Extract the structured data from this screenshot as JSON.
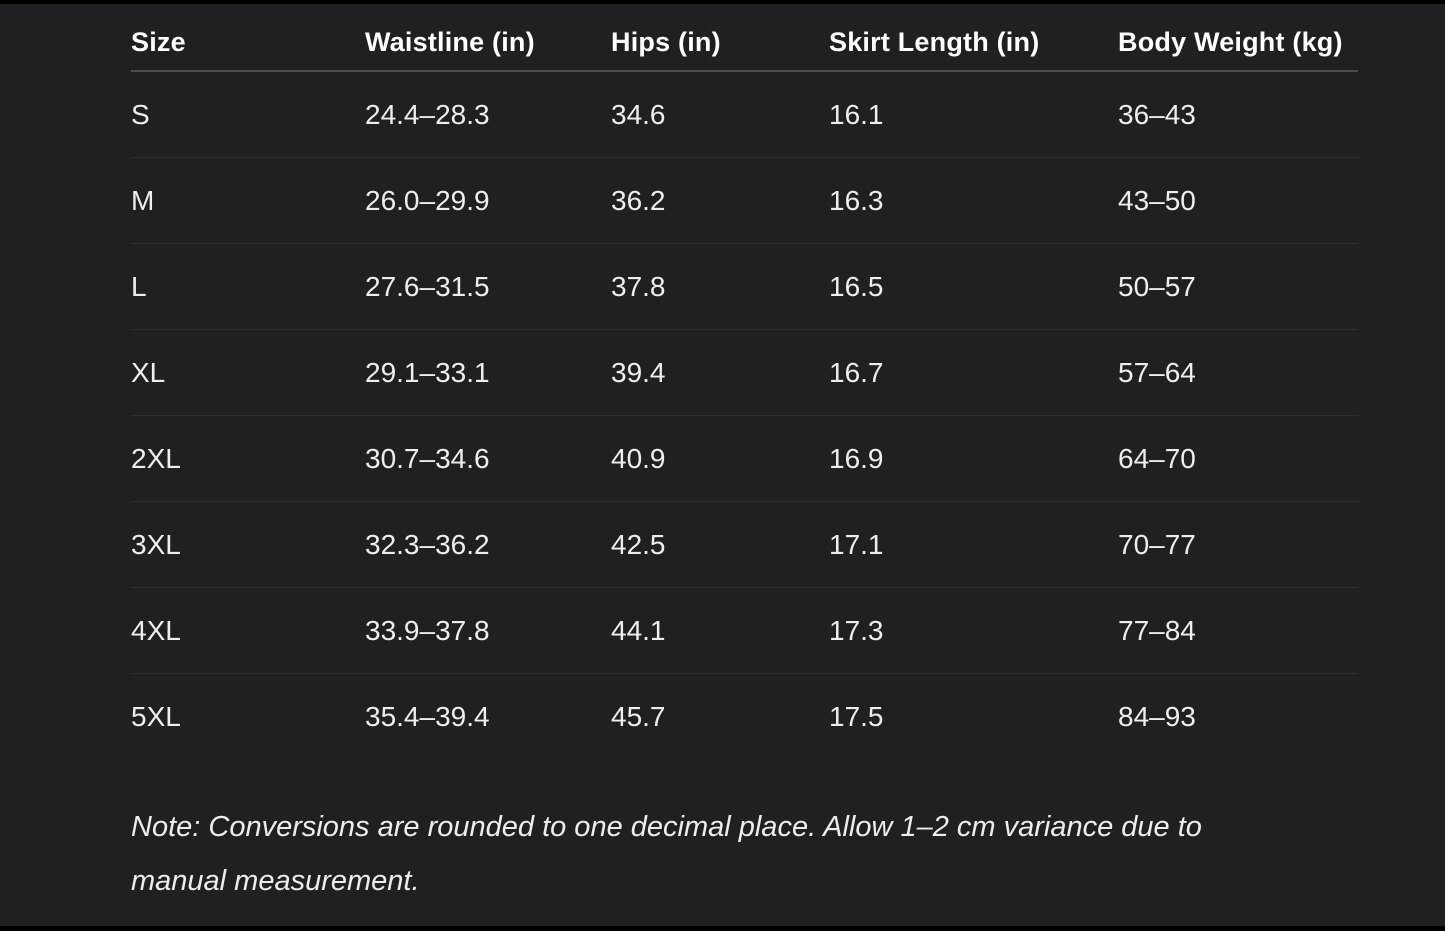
{
  "table": {
    "columns": [
      {
        "label": "Size"
      },
      {
        "label": "Waistline (in)"
      },
      {
        "label": "Hips (in)"
      },
      {
        "label": "Skirt Length (in)"
      },
      {
        "label": "Body Weight (kg)"
      }
    ],
    "rows": [
      {
        "cells": [
          "S",
          "24.4–28.3",
          "34.6",
          "16.1",
          "36–43"
        ]
      },
      {
        "cells": [
          "M",
          "26.0–29.9",
          "36.2",
          "16.3",
          "43–50"
        ]
      },
      {
        "cells": [
          "L",
          "27.6–31.5",
          "37.8",
          "16.5",
          "50–57"
        ]
      },
      {
        "cells": [
          "XL",
          "29.1–33.1",
          "39.4",
          "16.7",
          "57–64"
        ]
      },
      {
        "cells": [
          "2XL",
          "30.7–34.6",
          "40.9",
          "16.9",
          "64–70"
        ]
      },
      {
        "cells": [
          "3XL",
          "32.3–36.2",
          "42.5",
          "17.1",
          "70–77"
        ]
      },
      {
        "cells": [
          "4XL",
          "33.9–37.8",
          "44.1",
          "17.3",
          "77–84"
        ]
      },
      {
        "cells": [
          "5XL",
          "35.4–39.4",
          "45.7",
          "17.5",
          "84–93"
        ]
      }
    ]
  },
  "note": "Note: Conversions are rounded to one decimal place. Allow 1–2 cm variance due to manual measurement.",
  "colors": {
    "background": "#202022",
    "header_text": "#ffffff",
    "cell_text": "#eeeef0",
    "header_divider": "#4b4c4e",
    "row_divider": "#2f2f31"
  }
}
